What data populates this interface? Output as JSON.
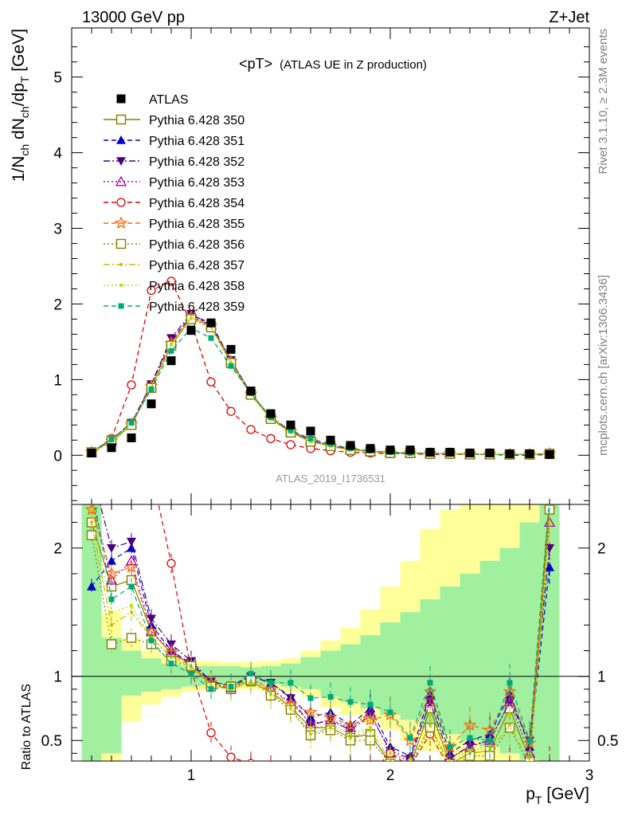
{
  "header": {
    "left": "13000 GeV pp",
    "right": "Z+Jet",
    "plot_title_main": "<pT>",
    "plot_title_sub": "(ATLAS UE in Z production)",
    "watermark": "ATLAS_2019_I1736531",
    "side_rivet": "Rivet 3.1.10, ≥ 2.3M events",
    "side_mcplots": "mcplots.cern.ch [arXiv:1306.3436]"
  },
  "axes": {
    "ylabel_main": "1/N_ch dN_ch/dp_T [GeV]",
    "ylabel_ratio": "Ratio to ATLAS",
    "xlabel": "p_T [GeV]"
  },
  "colors": {
    "data": "#000000",
    "band_inner": "#a0f0a0",
    "band_outer": "#ffff99"
  },
  "chart_data": {
    "type": "scatter",
    "xlim": [
      0.4,
      3.0
    ],
    "ylim_main": [
      -0.65,
      5.65
    ],
    "ylim_ratio": [
      0.34,
      2.34
    ],
    "yticks_main": [
      0,
      1,
      2,
      3,
      4,
      5
    ],
    "yticks_ratio": [
      0.5,
      1,
      2
    ],
    "xticks": [
      1,
      2,
      3
    ],
    "legend_position": "top-left",
    "bins": [
      0.5,
      0.6,
      0.7,
      0.8,
      0.9,
      1.0,
      1.1,
      1.2,
      1.3,
      1.4,
      1.5,
      1.6,
      1.7,
      1.8,
      1.9,
      2.0,
      2.1,
      2.2,
      2.3,
      2.4,
      2.5,
      2.6,
      2.7,
      2.8
    ],
    "data": {
      "name": "ATLAS",
      "values": [
        0.03,
        0.1,
        0.23,
        0.68,
        1.25,
        1.65,
        1.75,
        1.4,
        0.85,
        0.55,
        0.4,
        0.32,
        0.2,
        0.13,
        0.09,
        0.07,
        0.07,
        0.04,
        0.04,
        0.03,
        0.03,
        0.02,
        0.02,
        0.01
      ]
    },
    "series": [
      {
        "name": "Pythia 6.428 350",
        "color": "#808000",
        "marker": "open-square",
        "dash": "solid",
        "values": [
          0.04,
          0.18,
          0.4,
          0.9,
          1.45,
          1.82,
          1.7,
          1.22,
          0.8,
          0.48,
          0.3,
          0.18,
          0.12,
          0.07,
          0.05,
          0.03,
          0.03,
          0.02,
          0.02,
          0.01,
          0.01,
          0.01,
          0.01,
          0.02
        ],
        "ratio": [
          2.2,
          1.7,
          1.75,
          1.35,
          1.18,
          1.1,
          0.93,
          0.9,
          0.96,
          0.88,
          0.76,
          0.6,
          0.6,
          0.52,
          0.55,
          0.32,
          0.3,
          0.75,
          0.32,
          0.4,
          0.42,
          0.75,
          0.35,
          2.4
        ]
      },
      {
        "name": "Pythia 6.428 351",
        "color": "#0000cc",
        "marker": "filled-triangle-up",
        "dash": "dashed",
        "values": [
          0.04,
          0.2,
          0.42,
          0.93,
          1.5,
          1.85,
          1.75,
          1.25,
          0.82,
          0.5,
          0.32,
          0.2,
          0.13,
          0.08,
          0.05,
          0.04,
          0.03,
          0.02,
          0.02,
          0.01,
          0.01,
          0.01,
          0.01,
          0.02
        ],
        "ratio": [
          1.7,
          1.9,
          2.0,
          1.4,
          1.2,
          1.1,
          0.96,
          0.92,
          1.0,
          0.95,
          0.84,
          0.68,
          0.72,
          0.62,
          0.75,
          0.45,
          0.38,
          0.86,
          0.4,
          0.5,
          0.55,
          0.86,
          0.45,
          1.85
        ]
      },
      {
        "name": "Pythia 6.428 352",
        "color": "#4b0082",
        "marker": "filled-triangle-down",
        "dash": "dashdot",
        "values": [
          0.04,
          0.21,
          0.43,
          0.94,
          1.55,
          1.87,
          1.72,
          1.26,
          0.82,
          0.5,
          0.32,
          0.2,
          0.13,
          0.08,
          0.05,
          0.04,
          0.03,
          0.02,
          0.02,
          0.01,
          0.01,
          0.01,
          0.01,
          0.02
        ],
        "ratio": [
          2.6,
          2.0,
          2.05,
          1.45,
          1.25,
          1.12,
          0.96,
          0.93,
          1.0,
          0.95,
          0.83,
          0.62,
          0.66,
          0.58,
          0.7,
          0.42,
          0.36,
          0.8,
          0.36,
          0.46,
          0.5,
          0.8,
          0.5,
          2.0
        ]
      },
      {
        "name": "Pythia 6.428 353",
        "color": "#b000b0",
        "marker": "open-triangle-up",
        "dash": "dotted",
        "values": [
          0.04,
          0.2,
          0.42,
          0.92,
          1.5,
          1.84,
          1.72,
          1.25,
          0.82,
          0.5,
          0.32,
          0.2,
          0.13,
          0.08,
          0.05,
          0.04,
          0.03,
          0.02,
          0.02,
          0.01,
          0.01,
          0.01,
          0.01,
          0.02
        ],
        "ratio": [
          2.4,
          1.75,
          1.9,
          1.35,
          1.2,
          1.08,
          0.94,
          0.91,
          0.98,
          0.9,
          0.8,
          0.63,
          0.66,
          0.6,
          0.72,
          0.4,
          0.34,
          0.8,
          0.36,
          0.45,
          0.5,
          0.8,
          0.4,
          2.2
        ]
      },
      {
        "name": "Pythia 6.428 354",
        "color": "#dd0000",
        "marker": "open-circle",
        "dash": "dashed",
        "values": [
          0.04,
          0.22,
          0.93,
          2.18,
          2.3,
          1.75,
          0.97,
          0.58,
          0.34,
          0.22,
          0.14,
          0.09,
          0.06,
          0.04,
          0.03,
          0.02,
          0.02,
          0.01,
          0.01,
          0.01,
          0.01,
          0.0,
          0.0,
          0.01
        ],
        "ratio": [
          3.5,
          3.0,
          2.8,
          2.6,
          1.88,
          1.05,
          0.56,
          0.37,
          0.32,
          0.28,
          0.25,
          0.22,
          0.2,
          0.2,
          0.25,
          0.4,
          0.3,
          0.55,
          0.28,
          0.3,
          0.3,
          0.3,
          0.3,
          0.3
        ]
      },
      {
        "name": "Pythia 6.428 355",
        "color": "#ff6600",
        "marker": "open-star",
        "dash": "dashed",
        "values": [
          0.04,
          0.19,
          0.41,
          0.91,
          1.48,
          1.83,
          1.71,
          1.24,
          0.81,
          0.49,
          0.31,
          0.19,
          0.12,
          0.07,
          0.05,
          0.03,
          0.03,
          0.02,
          0.02,
          0.01,
          0.01,
          0.01,
          0.01,
          0.02
        ],
        "ratio": [
          2.3,
          1.8,
          1.85,
          1.35,
          1.18,
          1.08,
          0.95,
          0.92,
          0.98,
          0.9,
          0.78,
          0.72,
          0.68,
          0.62,
          0.66,
          0.7,
          0.5,
          0.88,
          0.45,
          0.62,
          0.58,
          0.88,
          0.48,
          2.3
        ]
      },
      {
        "name": "Pythia 6.428 356",
        "color": "#808000",
        "marker": "open-square",
        "dash": "dotted",
        "values": [
          0.04,
          0.19,
          0.4,
          0.89,
          1.45,
          1.8,
          1.69,
          1.22,
          0.8,
          0.48,
          0.3,
          0.18,
          0.12,
          0.07,
          0.05,
          0.03,
          0.03,
          0.02,
          0.02,
          0.01,
          0.01,
          0.01,
          0.01,
          0.02
        ],
        "ratio": [
          2.1,
          1.25,
          1.3,
          1.25,
          1.12,
          1.08,
          0.92,
          0.92,
          0.97,
          0.85,
          0.74,
          0.54,
          0.58,
          0.5,
          0.5,
          0.32,
          0.3,
          0.6,
          0.3,
          0.38,
          0.38,
          0.6,
          0.3,
          2.3
        ]
      },
      {
        "name": "Pythia 6.428 357",
        "color": "#ccbb00",
        "marker": "dot-dash",
        "dash": "dashdot",
        "values": [
          0.04,
          0.19,
          0.41,
          0.9,
          1.47,
          1.82,
          1.7,
          1.23,
          0.8,
          0.48,
          0.3,
          0.18,
          0.12,
          0.07,
          0.05,
          0.03,
          0.03,
          0.02,
          0.02,
          0.01,
          0.01,
          0.01,
          0.01,
          0.02
        ],
        "ratio": [
          2.2,
          1.4,
          1.5,
          1.3,
          1.15,
          1.08,
          0.93,
          0.9,
          0.96,
          0.87,
          0.76,
          0.55,
          0.6,
          0.52,
          0.58,
          0.34,
          0.32,
          0.62,
          0.32,
          0.4,
          0.42,
          0.62,
          0.33,
          2.2
        ]
      },
      {
        "name": "Pythia 6.428 358",
        "color": "#bbdd00",
        "marker": "dot",
        "dash": "dotted",
        "values": [
          0.04,
          0.19,
          0.41,
          0.9,
          1.46,
          1.81,
          1.7,
          1.23,
          0.8,
          0.48,
          0.3,
          0.18,
          0.12,
          0.07,
          0.05,
          0.03,
          0.03,
          0.02,
          0.02,
          0.01,
          0.01,
          0.01,
          0.01,
          0.02
        ],
        "ratio": [
          2.3,
          1.5,
          1.55,
          1.3,
          1.15,
          1.07,
          0.93,
          0.9,
          0.95,
          0.86,
          0.75,
          0.6,
          0.62,
          0.55,
          0.6,
          0.4,
          0.35,
          0.7,
          0.34,
          0.42,
          0.45,
          0.7,
          0.36,
          2.2
        ]
      },
      {
        "name": "Pythia 6.428 359",
        "color": "#00aa77",
        "marker": "filled-square-small",
        "dash": "dashed",
        "values": [
          0.04,
          0.21,
          0.43,
          0.87,
          1.38,
          1.68,
          1.55,
          1.18,
          0.82,
          0.5,
          0.33,
          0.22,
          0.15,
          0.09,
          0.06,
          0.04,
          0.03,
          0.03,
          0.02,
          0.02,
          0.01,
          0.01,
          0.01,
          0.02
        ],
        "ratio": [
          2.5,
          1.6,
          1.7,
          1.28,
          1.1,
          1.02,
          0.9,
          0.92,
          1.02,
          0.95,
          0.95,
          0.83,
          0.84,
          0.8,
          0.78,
          0.72,
          0.52,
          0.95,
          0.45,
          0.52,
          0.5,
          0.95,
          0.5,
          2.4
        ]
      }
    ],
    "bands": {
      "inner_lo": [
        0.3,
        0.4,
        0.85,
        0.88,
        0.9,
        0.92,
        0.93,
        0.93,
        0.94,
        0.94,
        0.92,
        0.9,
        0.84,
        0.8,
        0.75,
        0.7,
        0.66,
        0.6,
        0.55,
        0.5,
        0.45,
        0.4,
        0.35,
        0.3
      ],
      "inner_hi": [
        2.35,
        1.3,
        1.2,
        1.14,
        1.1,
        1.08,
        1.08,
        1.08,
        1.07,
        1.08,
        1.1,
        1.15,
        1.2,
        1.25,
        1.32,
        1.42,
        1.5,
        1.6,
        1.7,
        1.8,
        1.9,
        2.0,
        2.2,
        2.35
      ],
      "outer_lo": [
        0.3,
        0.3,
        0.65,
        0.78,
        0.84,
        0.88,
        0.9,
        0.9,
        0.9,
        0.9,
        0.88,
        0.84,
        0.76,
        0.7,
        0.64,
        0.58,
        0.5,
        0.42,
        0.36,
        0.32,
        0.3,
        0.3,
        0.3,
        0.3
      ],
      "outer_hi": [
        2.35,
        1.5,
        1.3,
        1.2,
        1.16,
        1.12,
        1.12,
        1.11,
        1.11,
        1.12,
        1.14,
        1.2,
        1.28,
        1.38,
        1.52,
        1.7,
        1.9,
        2.15,
        2.3,
        2.35,
        2.35,
        2.35,
        2.35,
        2.35
      ]
    }
  }
}
